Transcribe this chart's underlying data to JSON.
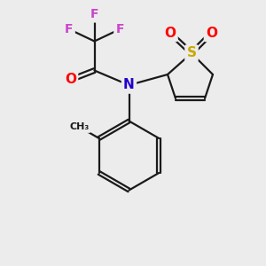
{
  "bg_color": "#ececec",
  "bond_color": "#1a1a1a",
  "S_color": "#c8a800",
  "O_color": "#ff0000",
  "N_color": "#2200cc",
  "F_color": "#cc44cc",
  "font_size_atom": 11,
  "font_size_small": 9,
  "line_width": 1.6,
  "figsize": [
    3.0,
    3.0
  ],
  "dpi": 100,
  "xlim": [
    0,
    10
  ],
  "ylim": [
    0,
    10
  ]
}
